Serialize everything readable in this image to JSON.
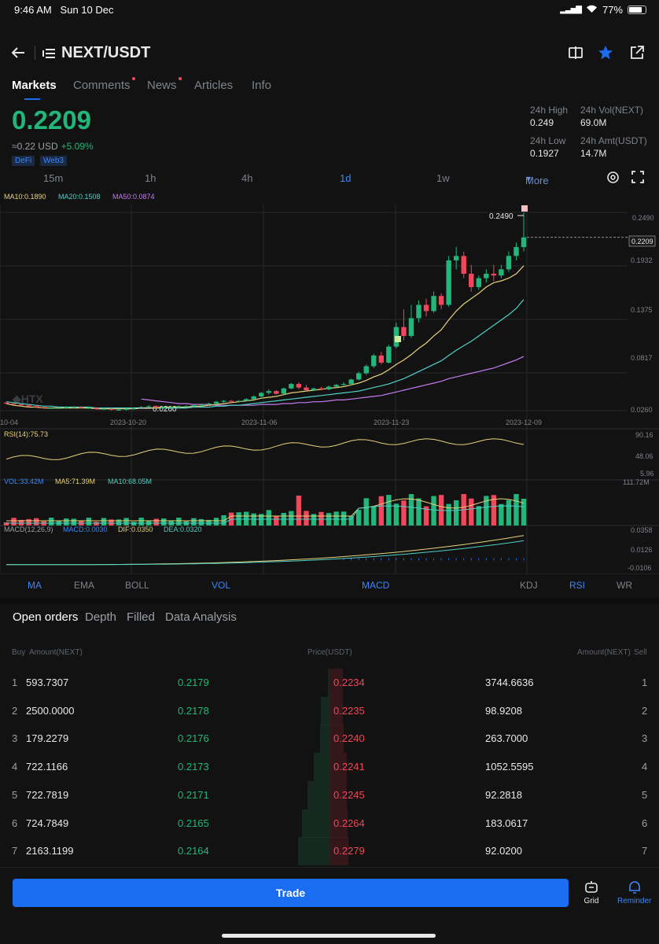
{
  "status_bar": {
    "time": "9:46 AM",
    "date": "Sun 10 Dec",
    "battery": "77%"
  },
  "header": {
    "pair": "NEXT/USDT"
  },
  "tabs": [
    {
      "label": "Markets",
      "active": true,
      "dot": false
    },
    {
      "label": "Comments",
      "active": false,
      "dot": true
    },
    {
      "label": "News",
      "active": false,
      "dot": true
    },
    {
      "label": "Articles",
      "active": false,
      "dot": false
    },
    {
      "label": "Info",
      "active": false,
      "dot": false
    }
  ],
  "ticker": {
    "price": "0.2209",
    "usd_approx": "≈0.22 USD",
    "change": "+5.09%",
    "tags": [
      "DeFi",
      "Web3"
    ],
    "high_label": "24h High",
    "high": "0.249",
    "vol_label": "24h Vol(NEXT)",
    "vol": "69.0M",
    "low_label": "24h Low",
    "low": "0.1927",
    "amt_label": "24h Amt(USDT)",
    "amt": "14.7M"
  },
  "timeframes": [
    "15m",
    "1h",
    "4h",
    "1d",
    "1w",
    "More"
  ],
  "active_timeframe": "1d",
  "colors": {
    "up": "#22b67a",
    "down": "#f0475a",
    "accent": "#1a6cf0",
    "ma10": "#e8d27a",
    "ma20": "#4fd1c5",
    "ma50": "#c47bf0"
  },
  "chart_data": {
    "type": "line",
    "title": "NEXT/USDT 1d",
    "ma_legend": {
      "ma10": "MA10:0.1890",
      "ma20": "MA20:0.1508",
      "ma50": "MA50:0.0874"
    },
    "y_ticks": [
      "0.2490",
      "0.1932",
      "0.1375",
      "0.0817",
      "0.0260"
    ],
    "x_ticks": [
      "10-04",
      "2023-10-20",
      "2023-11-06",
      "2023-11-23",
      "2023-12-09"
    ],
    "high_marker": "0.2490",
    "low_marker": "0.0260",
    "current_price": "0.2209",
    "ylim": [
      0.026,
      0.249
    ],
    "candles": [
      [
        0.035,
        0.036,
        0.033,
        0.034
      ],
      [
        0.034,
        0.035,
        0.032,
        0.033
      ],
      [
        0.033,
        0.034,
        0.031,
        0.032
      ],
      [
        0.032,
        0.033,
        0.03,
        0.031
      ],
      [
        0.031,
        0.032,
        0.029,
        0.03
      ],
      [
        0.03,
        0.031,
        0.029,
        0.029
      ],
      [
        0.029,
        0.03,
        0.028,
        0.029
      ],
      [
        0.029,
        0.03,
        0.028,
        0.029
      ],
      [
        0.029,
        0.031,
        0.028,
        0.03
      ],
      [
        0.03,
        0.031,
        0.029,
        0.03
      ],
      [
        0.03,
        0.031,
        0.029,
        0.029
      ],
      [
        0.029,
        0.03,
        0.028,
        0.029
      ],
      [
        0.029,
        0.03,
        0.027,
        0.028
      ],
      [
        0.028,
        0.029,
        0.027,
        0.028
      ],
      [
        0.028,
        0.029,
        0.026,
        0.027
      ],
      [
        0.027,
        0.028,
        0.026,
        0.027
      ],
      [
        0.027,
        0.029,
        0.026,
        0.028
      ],
      [
        0.028,
        0.03,
        0.027,
        0.029
      ],
      [
        0.029,
        0.031,
        0.028,
        0.03
      ],
      [
        0.03,
        0.032,
        0.029,
        0.031
      ],
      [
        0.031,
        0.032,
        0.029,
        0.03
      ],
      [
        0.03,
        0.031,
        0.029,
        0.03
      ],
      [
        0.03,
        0.031,
        0.029,
        0.03
      ],
      [
        0.03,
        0.032,
        0.029,
        0.031
      ],
      [
        0.031,
        0.032,
        0.03,
        0.031
      ],
      [
        0.031,
        0.033,
        0.03,
        0.032
      ],
      [
        0.032,
        0.034,
        0.031,
        0.033
      ],
      [
        0.033,
        0.035,
        0.032,
        0.034
      ],
      [
        0.034,
        0.037,
        0.033,
        0.036
      ],
      [
        0.036,
        0.038,
        0.035,
        0.037
      ],
      [
        0.037,
        0.038,
        0.035,
        0.036
      ],
      [
        0.036,
        0.038,
        0.035,
        0.037
      ],
      [
        0.037,
        0.04,
        0.036,
        0.039
      ],
      [
        0.039,
        0.043,
        0.038,
        0.042
      ],
      [
        0.042,
        0.047,
        0.041,
        0.046
      ],
      [
        0.046,
        0.05,
        0.044,
        0.048
      ],
      [
        0.048,
        0.049,
        0.044,
        0.045
      ],
      [
        0.045,
        0.052,
        0.044,
        0.051
      ],
      [
        0.051,
        0.057,
        0.05,
        0.056
      ],
      [
        0.056,
        0.058,
        0.05,
        0.052
      ],
      [
        0.052,
        0.055,
        0.048,
        0.049
      ],
      [
        0.049,
        0.052,
        0.048,
        0.051
      ],
      [
        0.051,
        0.053,
        0.049,
        0.05
      ],
      [
        0.05,
        0.054,
        0.049,
        0.053
      ],
      [
        0.053,
        0.056,
        0.051,
        0.055
      ],
      [
        0.055,
        0.058,
        0.053,
        0.056
      ],
      [
        0.056,
        0.062,
        0.055,
        0.061
      ],
      [
        0.061,
        0.07,
        0.06,
        0.068
      ],
      [
        0.068,
        0.078,
        0.066,
        0.076
      ],
      [
        0.076,
        0.09,
        0.074,
        0.088
      ],
      [
        0.088,
        0.092,
        0.078,
        0.08
      ],
      [
        0.08,
        0.1,
        0.079,
        0.098
      ],
      [
        0.098,
        0.125,
        0.096,
        0.12
      ],
      [
        0.12,
        0.14,
        0.105,
        0.11
      ],
      [
        0.11,
        0.145,
        0.108,
        0.13
      ],
      [
        0.13,
        0.15,
        0.125,
        0.145
      ],
      [
        0.145,
        0.152,
        0.132,
        0.138
      ],
      [
        0.138,
        0.16,
        0.136,
        0.155
      ],
      [
        0.155,
        0.158,
        0.14,
        0.145
      ],
      [
        0.145,
        0.2,
        0.143,
        0.195
      ],
      [
        0.195,
        0.21,
        0.185,
        0.2
      ],
      [
        0.2,
        0.205,
        0.175,
        0.18
      ],
      [
        0.18,
        0.19,
        0.16,
        0.165
      ],
      [
        0.165,
        0.178,
        0.162,
        0.175
      ],
      [
        0.175,
        0.185,
        0.17,
        0.18
      ],
      [
        0.18,
        0.19,
        0.172,
        0.178
      ],
      [
        0.178,
        0.19,
        0.175,
        0.185
      ],
      [
        0.185,
        0.205,
        0.182,
        0.2
      ],
      [
        0.2,
        0.215,
        0.195,
        0.21
      ],
      [
        0.21,
        0.249,
        0.205,
        0.2209
      ]
    ],
    "ma10": [
      0.034,
      0.032,
      0.031,
      0.03,
      0.03,
      0.029,
      0.029,
      0.029,
      0.029,
      0.029,
      0.029,
      0.029,
      0.028,
      0.028,
      0.028,
      0.028,
      0.028,
      0.028,
      0.029,
      0.029,
      0.029,
      0.03,
      0.03,
      0.03,
      0.03,
      0.031,
      0.031,
      0.032,
      0.033,
      0.034,
      0.035,
      0.036,
      0.037,
      0.038,
      0.04,
      0.041,
      0.042,
      0.044,
      0.046,
      0.047,
      0.048,
      0.049,
      0.05,
      0.051,
      0.052,
      0.053,
      0.055,
      0.057,
      0.06,
      0.064,
      0.067,
      0.072,
      0.078,
      0.083,
      0.089,
      0.096,
      0.102,
      0.11,
      0.117,
      0.128,
      0.138,
      0.146,
      0.152,
      0.158,
      0.165,
      0.17,
      0.172,
      0.175,
      0.18,
      0.189
    ],
    "ma20": [
      0.036,
      0.035,
      0.034,
      0.033,
      0.032,
      0.031,
      0.031,
      0.03,
      0.03,
      0.03,
      0.03,
      0.03,
      0.029,
      0.029,
      0.029,
      0.029,
      0.029,
      0.029,
      0.029,
      0.029,
      0.029,
      0.029,
      0.029,
      0.029,
      0.029,
      0.03,
      0.03,
      0.03,
      0.031,
      0.031,
      0.032,
      0.032,
      0.033,
      0.034,
      0.035,
      0.036,
      0.037,
      0.038,
      0.039,
      0.04,
      0.041,
      0.042,
      0.043,
      0.044,
      0.045,
      0.046,
      0.047,
      0.048,
      0.05,
      0.052,
      0.054,
      0.056,
      0.059,
      0.062,
      0.066,
      0.07,
      0.074,
      0.078,
      0.082,
      0.088,
      0.094,
      0.099,
      0.104,
      0.11,
      0.116,
      0.122,
      0.128,
      0.134,
      0.141,
      0.151
    ],
    "ma50": [
      null,
      null,
      null,
      null,
      null,
      null,
      null,
      null,
      null,
      null,
      null,
      null,
      null,
      null,
      null,
      null,
      null,
      null,
      0.039,
      0.038,
      0.037,
      0.036,
      0.035,
      0.034,
      0.034,
      0.033,
      0.033,
      0.033,
      0.032,
      0.032,
      0.032,
      0.032,
      0.032,
      0.032,
      0.033,
      0.033,
      0.033,
      0.034,
      0.034,
      0.035,
      0.035,
      0.036,
      0.036,
      0.037,
      0.038,
      0.038,
      0.039,
      0.04,
      0.041,
      0.042,
      0.043,
      0.045,
      0.047,
      0.049,
      0.051,
      0.053,
      0.055,
      0.057,
      0.059,
      0.062,
      0.064,
      0.066,
      0.068,
      0.07,
      0.072,
      0.074,
      0.077,
      0.08,
      0.083,
      0.087
    ],
    "rsi": {
      "label": "RSI(14):75.73",
      "ticks": [
        "90.16",
        "48.06",
        "5.96"
      ]
    },
    "vol": {
      "labels": [
        "VOL:33.42M",
        "MA5:71.39M",
        "MA10:68.05M"
      ],
      "max_tick": "111.72M"
    },
    "macd": {
      "labels": [
        "MACD(12,26,9)",
        "MACD:0.0030",
        "DIF:0.0350",
        "DEA:0.0320"
      ],
      "ticks": [
        "0.0358",
        "0.0126",
        "-0.0106"
      ]
    }
  },
  "indicator_tabs": [
    {
      "label": "MA",
      "on": true
    },
    {
      "label": "EMA",
      "on": false
    },
    {
      "label": "BOLL",
      "on": false
    },
    {
      "label": "VOL",
      "on": true
    },
    {
      "label": "MACD",
      "on": true
    },
    {
      "label": "KDJ",
      "on": false
    },
    {
      "label": "RSI",
      "on": true
    },
    {
      "label": "WR",
      "on": false
    }
  ],
  "order_tabs": [
    "Open orders",
    "Depth",
    "Filled",
    "Data Analysis"
  ],
  "orderbook": {
    "head": {
      "buy": "Buy",
      "amount_left": "Amount(NEXT)",
      "price": "Price(USDT)",
      "amount_right": "Amount(NEXT)",
      "sell": "Sell"
    },
    "rows": [
      {
        "idx": "1",
        "buy_amt": "593.7307",
        "buy_price": "0.2179",
        "sell_price": "0.2234",
        "sell_amt": "3744.6636"
      },
      {
        "idx": "2",
        "buy_amt": "2500.0000",
        "buy_price": "0.2178",
        "sell_price": "0.2235",
        "sell_amt": "98.9208"
      },
      {
        "idx": "3",
        "buy_amt": "179.2279",
        "buy_price": "0.2176",
        "sell_price": "0.2240",
        "sell_amt": "263.7000"
      },
      {
        "idx": "4",
        "buy_amt": "722.1166",
        "buy_price": "0.2173",
        "sell_price": "0.2241",
        "sell_amt": "1052.5595"
      },
      {
        "idx": "5",
        "buy_amt": "722.7819",
        "buy_price": "0.2171",
        "sell_price": "0.2245",
        "sell_amt": "92.2818"
      },
      {
        "idx": "6",
        "buy_amt": "724.7849",
        "buy_price": "0.2165",
        "sell_price": "0.2264",
        "sell_amt": "183.0617"
      },
      {
        "idx": "7",
        "buy_amt": "2163.1199",
        "buy_price": "0.2164",
        "sell_price": "0.2279",
        "sell_amt": "92.0200"
      }
    ],
    "buy_depth": [
      0.05,
      0.28,
      0.31,
      0.5,
      0.69,
      0.88,
      1.0
    ],
    "sell_depth": [
      0.55,
      0.57,
      0.6,
      0.72,
      0.74,
      0.78,
      0.8
    ]
  },
  "bottom": {
    "trade": "Trade",
    "grid": "Grid",
    "reminder": "Reminder"
  }
}
